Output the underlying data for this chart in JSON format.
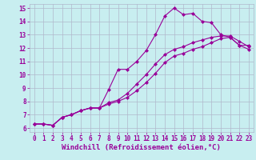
{
  "xlabel": "Windchill (Refroidissement éolien,°C)",
  "xlim": [
    -0.5,
    23.5
  ],
  "ylim": [
    5.7,
    15.3
  ],
  "xticks": [
    0,
    1,
    2,
    3,
    4,
    5,
    6,
    7,
    8,
    9,
    10,
    11,
    12,
    13,
    14,
    15,
    16,
    17,
    18,
    19,
    20,
    21,
    22,
    23
  ],
  "yticks": [
    6,
    7,
    8,
    9,
    10,
    11,
    12,
    13,
    14,
    15
  ],
  "bg_color": "#c8eef0",
  "grid_color": "#b0b8cc",
  "line_color": "#990099",
  "line1_x": [
    0,
    1,
    2,
    3,
    4,
    5,
    6,
    7,
    8,
    9,
    10,
    11,
    12,
    13,
    14,
    15,
    16,
    17,
    18,
    19,
    20,
    21,
    22,
    23
  ],
  "line1_y": [
    6.3,
    6.3,
    6.2,
    6.8,
    7.0,
    7.3,
    7.5,
    7.5,
    8.9,
    10.4,
    10.4,
    11.0,
    11.8,
    13.0,
    14.4,
    15.0,
    14.5,
    14.6,
    14.0,
    13.9,
    13.0,
    12.8,
    12.2,
    12.2
  ],
  "line2_x": [
    0,
    1,
    2,
    3,
    4,
    5,
    6,
    7,
    8,
    9,
    10,
    11,
    12,
    13,
    14,
    15,
    16,
    17,
    18,
    19,
    20,
    21,
    22,
    23
  ],
  "line2_y": [
    6.3,
    6.3,
    6.2,
    6.8,
    7.0,
    7.3,
    7.5,
    7.5,
    7.9,
    8.1,
    8.6,
    9.3,
    10.0,
    10.8,
    11.5,
    11.9,
    12.1,
    12.4,
    12.6,
    12.8,
    12.9,
    12.9,
    12.5,
    12.1
  ],
  "line3_x": [
    0,
    1,
    2,
    3,
    4,
    5,
    6,
    7,
    8,
    9,
    10,
    11,
    12,
    13,
    14,
    15,
    16,
    17,
    18,
    19,
    20,
    21,
    22,
    23
  ],
  "line3_y": [
    6.3,
    6.3,
    6.2,
    6.8,
    7.0,
    7.3,
    7.5,
    7.5,
    7.8,
    8.0,
    8.3,
    8.8,
    9.4,
    10.1,
    10.9,
    11.4,
    11.6,
    11.9,
    12.1,
    12.4,
    12.7,
    12.8,
    12.2,
    11.9
  ],
  "tick_fontsize": 5.5,
  "xlabel_fontsize": 6.5,
  "marker": "D",
  "markersize": 2.0,
  "linewidth": 0.8
}
